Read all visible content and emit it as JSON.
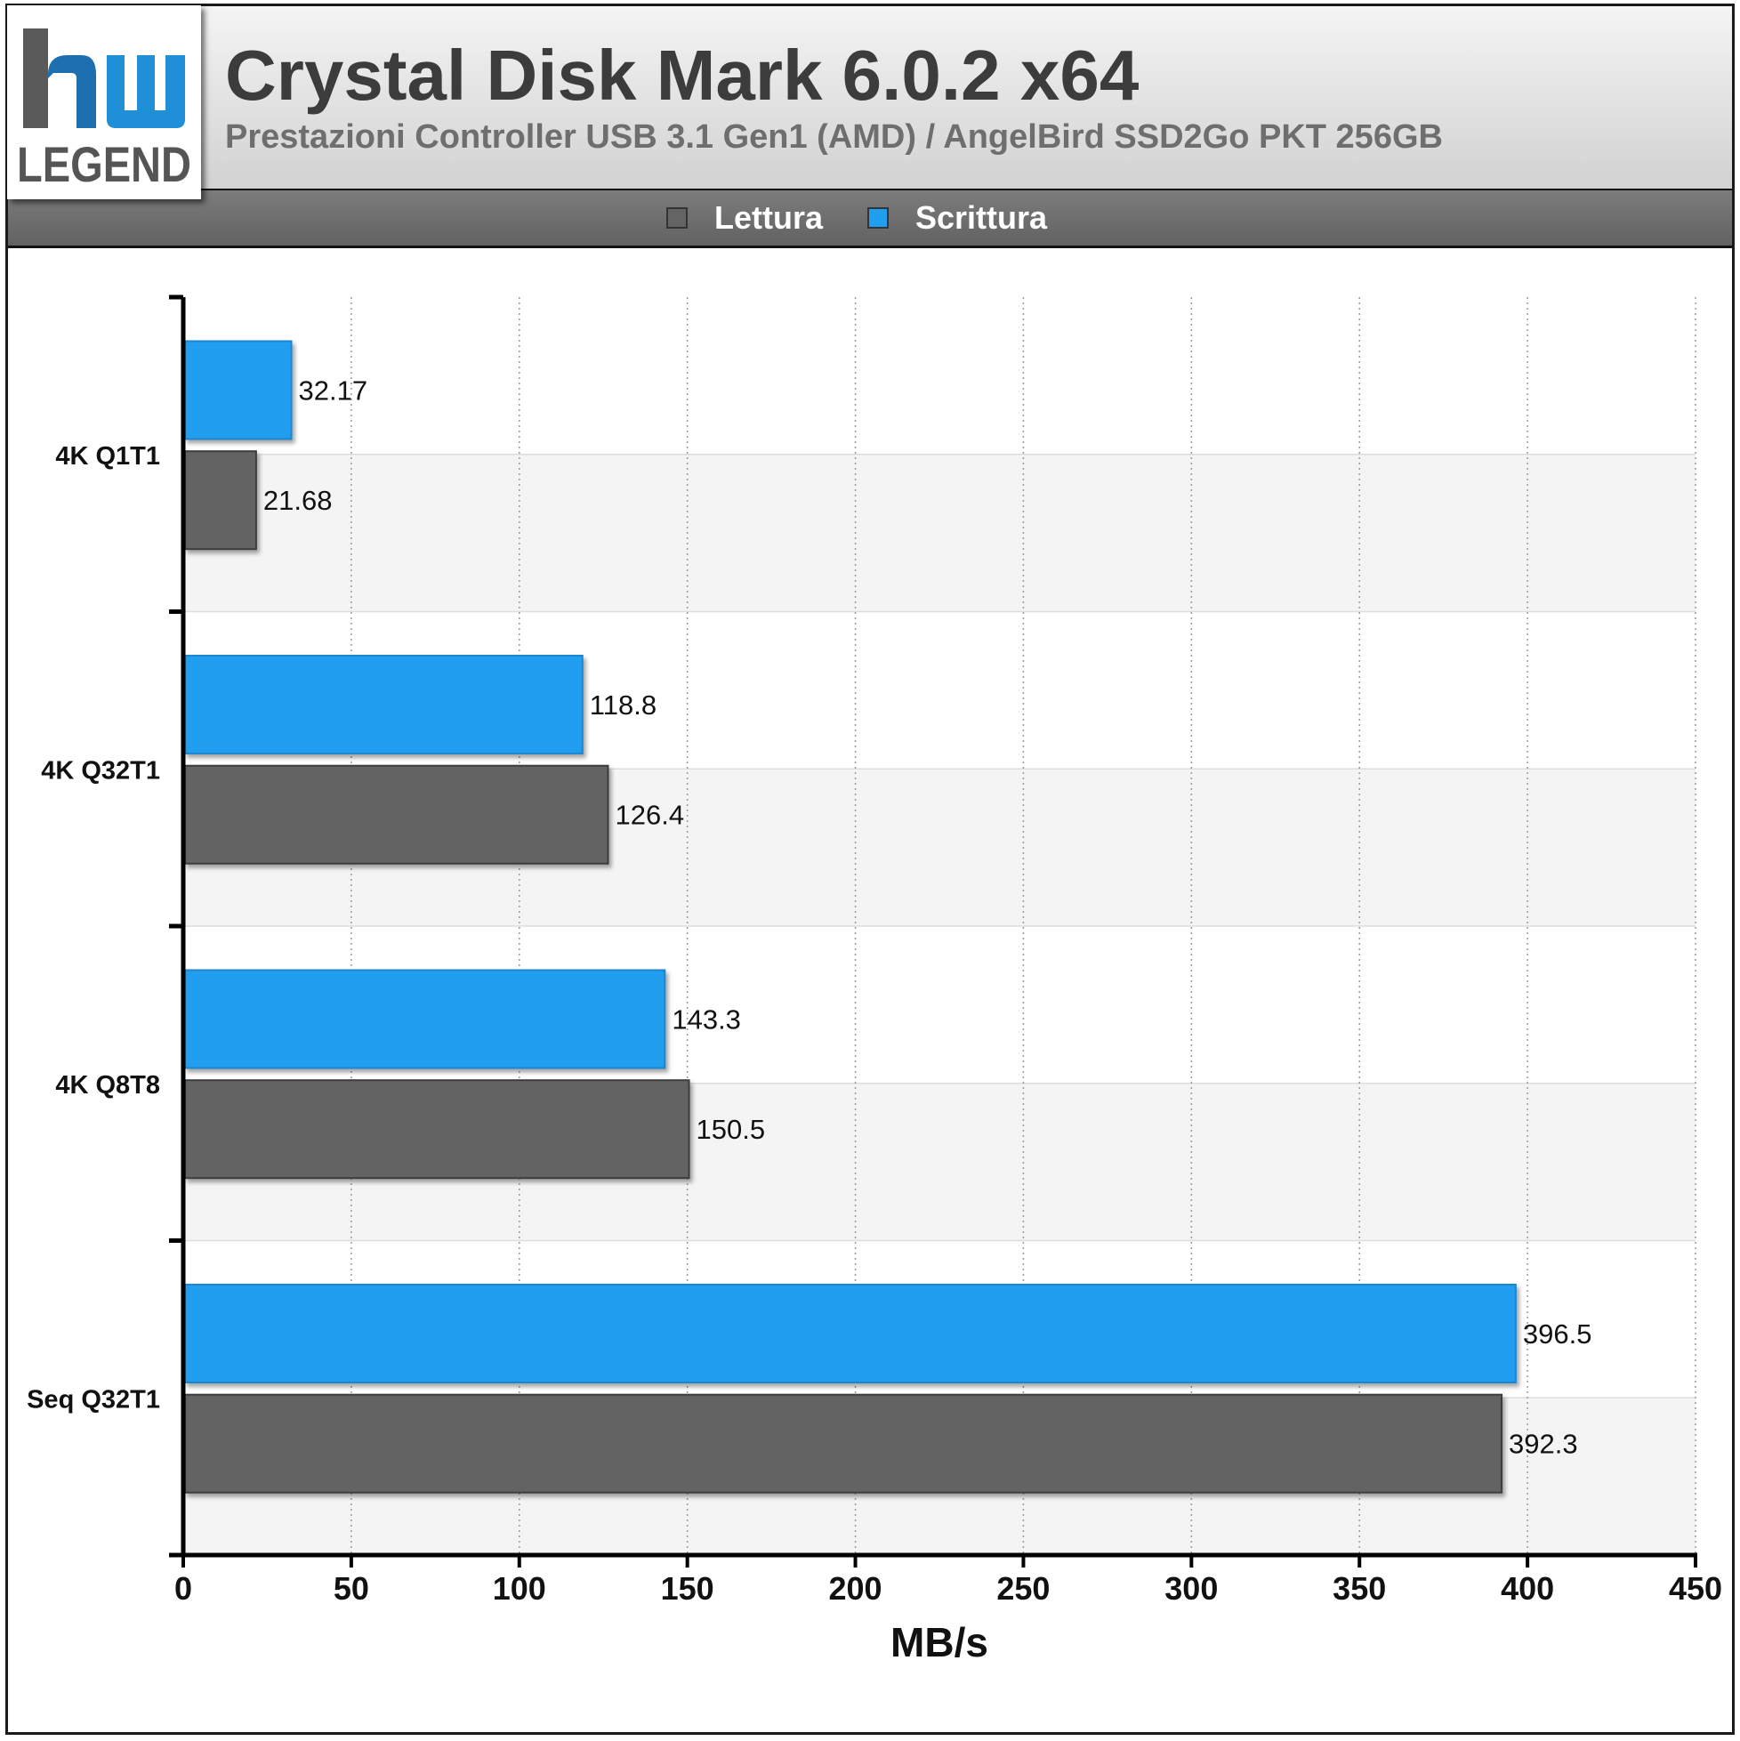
{
  "header": {
    "title": "Crystal Disk Mark 6.0.2 x64",
    "subtitle": "Prestazioni Controller USB 3.1 Gen1 (AMD) / AngelBird SSD2Go PKT 256GB",
    "logo_text": "hw LEGEND"
  },
  "colors": {
    "read": "#646464",
    "write": "#209ef0",
    "band": "#f4f4f4"
  },
  "chart_data": {
    "type": "bar",
    "orientation": "horizontal",
    "title": "Crystal Disk Mark 6.0.2 x64",
    "subtitle": "Prestazioni Controller USB 3.1 Gen1 (AMD) / AngelBird SSD2Go PKT 256GB",
    "categories": [
      "4K Q1T1",
      "4K Q32T1",
      "4K Q8T8",
      "Seq Q32T1"
    ],
    "series": [
      {
        "name": "Lettura",
        "values": [
          21.68,
          126.4,
          150.5,
          392.3
        ],
        "labels": [
          "21.68",
          "126.4",
          "150.5",
          "392.3"
        ]
      },
      {
        "name": "Scrittura",
        "values": [
          32.17,
          118.8,
          143.3,
          396.5
        ],
        "labels": [
          "32.17",
          "118.8",
          "143.3",
          "396.5"
        ]
      }
    ],
    "xlabel": "MB/s",
    "ylabel": "",
    "xlim": [
      0,
      450
    ],
    "xticks": [
      0,
      50,
      100,
      150,
      200,
      250,
      300,
      350,
      400,
      450
    ],
    "grid": "vertical dotted",
    "legend": "top-center"
  }
}
